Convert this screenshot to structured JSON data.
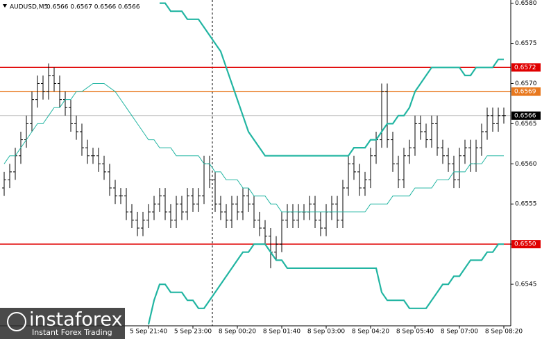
{
  "header": {
    "symbol": "AUDUSD,M5",
    "quote": "0.6566 0.6567 0.6566 0.6566"
  },
  "watermark": {
    "brand": "instaforex",
    "tagline": "Instant Forex Trading"
  },
  "chart_data": {
    "type": "ohlc",
    "color": "#000000",
    "categories": [
      null,
      null,
      null,
      null,
      null,
      null,
      null,
      null,
      null,
      null,
      null,
      null,
      null,
      null,
      null,
      null,
      null,
      null,
      null,
      null,
      null,
      null,
      null,
      null,
      null,
      null,
      "5 Sep 21:40",
      null,
      null,
      null,
      null,
      null,
      null,
      null,
      "5 Sep 23:00",
      null,
      null,
      null,
      null,
      null,
      null,
      null,
      "8 Sep 00:20",
      null,
      null,
      null,
      null,
      null,
      null,
      null,
      "8 Sep 01:40",
      null,
      null,
      null,
      null,
      null,
      null,
      null,
      "8 Sep 03:00",
      null,
      null,
      null,
      null,
      null,
      null,
      null,
      "8 Sep 04:20",
      null,
      null,
      null,
      null,
      null,
      null,
      null,
      "8 Sep 05:40",
      null,
      null,
      null,
      null,
      null,
      null,
      null,
      "8 Sep 07:00",
      null,
      null,
      null,
      null,
      null,
      null,
      null,
      "8 Sep 08:20"
    ],
    "open": [
      0.6557,
      0.6558,
      0.6559,
      0.6561,
      0.6563,
      0.6565,
      0.6568,
      0.657,
      0.6569,
      0.6571,
      0.657,
      0.6568,
      0.6567,
      0.6565,
      0.6564,
      0.6562,
      0.6561,
      0.6561,
      0.656,
      0.6559,
      0.6557,
      0.6556,
      0.6556,
      0.6554,
      0.6553,
      0.6552,
      0.6553,
      0.6554,
      0.6555,
      0.6556,
      0.6554,
      0.6553,
      0.6555,
      0.6554,
      0.6556,
      0.6555,
      0.6556,
      0.656,
      0.6558,
      0.6555,
      0.6554,
      0.6553,
      0.6555,
      0.6554,
      0.6556,
      0.6555,
      0.6553,
      0.6552,
      0.6551,
      0.6549,
      0.655,
      0.6553,
      0.6554,
      0.6553,
      0.6554,
      0.6554,
      0.6555,
      0.6553,
      0.6552,
      0.6554,
      0.6555,
      0.6553,
      0.6557,
      0.656,
      0.6559,
      0.6557,
      0.6558,
      0.6561,
      0.6563,
      0.6569,
      0.6563,
      0.656,
      0.6558,
      0.6561,
      0.6562,
      0.6565,
      0.6564,
      0.6563,
      0.6565,
      0.6562,
      0.6561,
      0.656,
      0.6558,
      0.6561,
      0.6562,
      0.656,
      0.6562,
      0.6564,
      0.6566,
      0.6565,
      0.6566
    ],
    "high": [
      0.6559,
      0.656,
      0.6562,
      0.6564,
      0.6566,
      0.6569,
      0.6571,
      0.6571,
      0.65725,
      0.6572,
      0.6571,
      0.6569,
      0.6568,
      0.6566,
      0.6565,
      0.6563,
      0.6562,
      0.6562,
      0.6561,
      0.656,
      0.6558,
      0.6557,
      0.6557,
      0.6555,
      0.6554,
      0.6554,
      0.6555,
      0.6556,
      0.6557,
      0.6557,
      0.6555,
      0.6556,
      0.6556,
      0.6557,
      0.6557,
      0.6557,
      0.6561,
      0.6561,
      0.6559,
      0.6556,
      0.6555,
      0.6556,
      0.6556,
      0.6557,
      0.6557,
      0.6556,
      0.6554,
      0.6553,
      0.6552,
      0.6551,
      0.6554,
      0.6555,
      0.6555,
      0.6555,
      0.6555,
      0.6556,
      0.6556,
      0.6554,
      0.6555,
      0.6556,
      0.6556,
      0.6558,
      0.6561,
      0.6561,
      0.656,
      0.6559,
      0.6562,
      0.6564,
      0.657,
      0.657,
      0.6564,
      0.6561,
      0.6562,
      0.6563,
      0.6566,
      0.6566,
      0.6565,
      0.6566,
      0.6566,
      0.6563,
      0.6562,
      0.6561,
      0.6562,
      0.6563,
      0.6563,
      0.6563,
      0.6565,
      0.6567,
      0.6567,
      0.6567,
      0.6567
    ],
    "low": [
      0.6556,
      0.6557,
      0.6558,
      0.656,
      0.6562,
      0.6564,
      0.6567,
      0.6568,
      0.6568,
      0.6569,
      0.6567,
      0.6566,
      0.6564,
      0.6563,
      0.6561,
      0.656,
      0.656,
      0.6559,
      0.6558,
      0.6556,
      0.6555,
      0.6555,
      0.6553,
      0.6552,
      0.6551,
      0.6551,
      0.6552,
      0.6553,
      0.6554,
      0.6553,
      0.6552,
      0.6552,
      0.6553,
      0.6553,
      0.6554,
      0.6554,
      0.6555,
      0.6557,
      0.6554,
      0.6553,
      0.6552,
      0.6552,
      0.6553,
      0.6553,
      0.6554,
      0.6552,
      0.6551,
      0.655,
      0.6547,
      0.6548,
      0.6549,
      0.6552,
      0.6552,
      0.6552,
      0.6553,
      0.6553,
      0.6552,
      0.6551,
      0.6551,
      0.6553,
      0.6552,
      0.6552,
      0.6556,
      0.6558,
      0.6556,
      0.6556,
      0.6557,
      0.656,
      0.6562,
      0.6562,
      0.6559,
      0.6557,
      0.6557,
      0.656,
      0.6561,
      0.6563,
      0.6562,
      0.6562,
      0.6561,
      0.656,
      0.6559,
      0.6557,
      0.6557,
      0.656,
      0.6559,
      0.6559,
      0.6561,
      0.6563,
      0.6564,
      0.6564,
      0.6565
    ],
    "close": [
      0.6558,
      0.6559,
      0.6561,
      0.6563,
      0.6565,
      0.6568,
      0.657,
      0.6569,
      0.6571,
      0.657,
      0.6568,
      0.6567,
      0.6565,
      0.6564,
      0.6562,
      0.6561,
      0.6561,
      0.656,
      0.6559,
      0.6557,
      0.6556,
      0.6556,
      0.6554,
      0.6553,
      0.6552,
      0.6553,
      0.6554,
      0.6555,
      0.6556,
      0.6554,
      0.6553,
      0.6555,
      0.6554,
      0.6556,
      0.6555,
      0.6556,
      0.656,
      0.6558,
      0.6555,
      0.6554,
      0.6553,
      0.6555,
      0.6554,
      0.6556,
      0.6555,
      0.6553,
      0.6552,
      0.6551,
      0.6549,
      0.655,
      0.6553,
      0.6554,
      0.6553,
      0.6554,
      0.6554,
      0.6555,
      0.6553,
      0.6552,
      0.6554,
      0.6555,
      0.6553,
      0.6557,
      0.656,
      0.6559,
      0.6557,
      0.6558,
      0.6561,
      0.6563,
      0.6569,
      0.6563,
      0.656,
      0.6558,
      0.6561,
      0.6562,
      0.6565,
      0.6564,
      0.6563,
      0.6565,
      0.6562,
      0.6561,
      0.656,
      0.6558,
      0.6561,
      0.6562,
      0.656,
      0.6562,
      0.6564,
      0.6566,
      0.6565,
      0.6566,
      0.6566
    ],
    "lines": [
      {
        "color": "#22b5a2",
        "width": 2.2,
        "values": [
          null,
          null,
          null,
          null,
          null,
          null,
          null,
          null,
          null,
          null,
          null,
          null,
          null,
          null,
          null,
          null,
          null,
          null,
          null,
          null,
          null,
          null,
          null,
          null,
          null,
          null,
          null,
          null,
          0.658,
          0.658,
          0.6579,
          0.6579,
          0.6579,
          0.6578,
          0.6578,
          0.6578,
          0.6577,
          0.6576,
          0.6575,
          0.6574,
          0.6572,
          0.657,
          0.6568,
          0.6566,
          0.6564,
          0.6563,
          0.6562,
          0.6561,
          0.6561,
          0.6561,
          0.6561,
          0.6561,
          0.6561,
          0.6561,
          0.6561,
          0.6561,
          0.6561,
          0.6561,
          0.6561,
          0.6561,
          0.6561,
          0.6561,
          0.6561,
          0.6562,
          0.6562,
          0.6562,
          0.6563,
          0.6563,
          0.6564,
          0.6565,
          0.6565,
          0.6566,
          0.6566,
          0.6567,
          0.6569,
          0.657,
          0.6571,
          0.6572,
          0.6572,
          0.6572,
          0.6572,
          0.6572,
          0.6572,
          0.6571,
          0.6571,
          0.6572,
          0.6572,
          0.6572,
          0.6572,
          0.6573,
          0.6573
        ]
      },
      {
        "color": "#22b5a2",
        "width": 2.2,
        "values": [
          null,
          null,
          null,
          null,
          null,
          null,
          null,
          null,
          null,
          null,
          null,
          null,
          null,
          null,
          null,
          null,
          null,
          null,
          null,
          null,
          null,
          null,
          null,
          null,
          null,
          null,
          0.654,
          0.6543,
          0.6545,
          0.6545,
          0.6544,
          0.6544,
          0.6544,
          0.6543,
          0.6543,
          0.6542,
          0.6542,
          0.6543,
          0.6544,
          0.6545,
          0.6546,
          0.6547,
          0.6548,
          0.6549,
          0.6549,
          0.655,
          0.655,
          0.655,
          0.6549,
          0.6548,
          0.6548,
          0.6547,
          0.6547,
          0.6547,
          0.6547,
          0.6547,
          0.6547,
          0.6547,
          0.6547,
          0.6547,
          0.6547,
          0.6547,
          0.6547,
          0.6547,
          0.6547,
          0.6547,
          0.6547,
          0.6547,
          0.6544,
          0.6543,
          0.6543,
          0.6543,
          0.6543,
          0.6542,
          0.6542,
          0.6542,
          0.6542,
          0.6543,
          0.6544,
          0.6545,
          0.6545,
          0.6546,
          0.6546,
          0.6547,
          0.6548,
          0.6548,
          0.6548,
          0.6549,
          0.6549,
          0.655,
          0.655
        ]
      },
      {
        "color": "#22b5a2",
        "width": 1,
        "values": [
          0.656,
          0.6561,
          0.6561,
          0.6562,
          0.6563,
          0.6564,
          0.6565,
          0.6565,
          0.6566,
          0.6567,
          0.6567,
          0.6568,
          0.6568,
          0.6569,
          0.6569,
          0.65695,
          0.657,
          0.657,
          0.657,
          0.65695,
          0.6569,
          0.6568,
          0.6567,
          0.6566,
          0.6565,
          0.6564,
          0.6563,
          0.6563,
          0.6562,
          0.6562,
          0.6562,
          0.6561,
          0.6561,
          0.6561,
          0.6561,
          0.6561,
          0.656,
          0.656,
          0.6559,
          0.6559,
          0.6558,
          0.6558,
          0.6558,
          0.6557,
          0.6557,
          0.6556,
          0.6556,
          0.6556,
          0.6555,
          0.6555,
          0.6554,
          0.6554,
          0.6554,
          0.6554,
          0.6554,
          0.6554,
          0.6554,
          0.6554,
          0.6554,
          0.6554,
          0.6554,
          0.6554,
          0.6554,
          0.6554,
          0.6554,
          0.6554,
          0.6555,
          0.6555,
          0.6555,
          0.6555,
          0.6556,
          0.6556,
          0.6556,
          0.6556,
          0.6557,
          0.6557,
          0.6557,
          0.6557,
          0.6558,
          0.6558,
          0.6558,
          0.6559,
          0.6559,
          0.6559,
          0.656,
          0.656,
          0.656,
          0.6561,
          0.6561,
          0.6561,
          0.6561
        ]
      }
    ],
    "levels": [
      {
        "value": 0.6572,
        "label": "0.6572",
        "color": "#e00000"
      },
      {
        "value": 0.6569,
        "label": "0.6569",
        "color": "#e8781e"
      },
      {
        "value": 0.6566,
        "label": "0.6566",
        "color": "#c0c0c0",
        "label_bg": "#000000"
      },
      {
        "value": 0.655,
        "label": "0.6550",
        "color": "#e00000"
      }
    ],
    "ylim": [
      0.654,
      0.65804
    ],
    "yticks": [
      {
        "value": 0.658,
        "label": "0.6580"
      },
      0.6575,
      {
        "value": 0.657,
        "label": "0.6570"
      },
      0.6565,
      {
        "value": 0.656,
        "label": "0.6560"
      },
      0.6555,
      {
        "value": 0.655,
        "label": "0.6550"
      },
      0.6545
    ]
  }
}
